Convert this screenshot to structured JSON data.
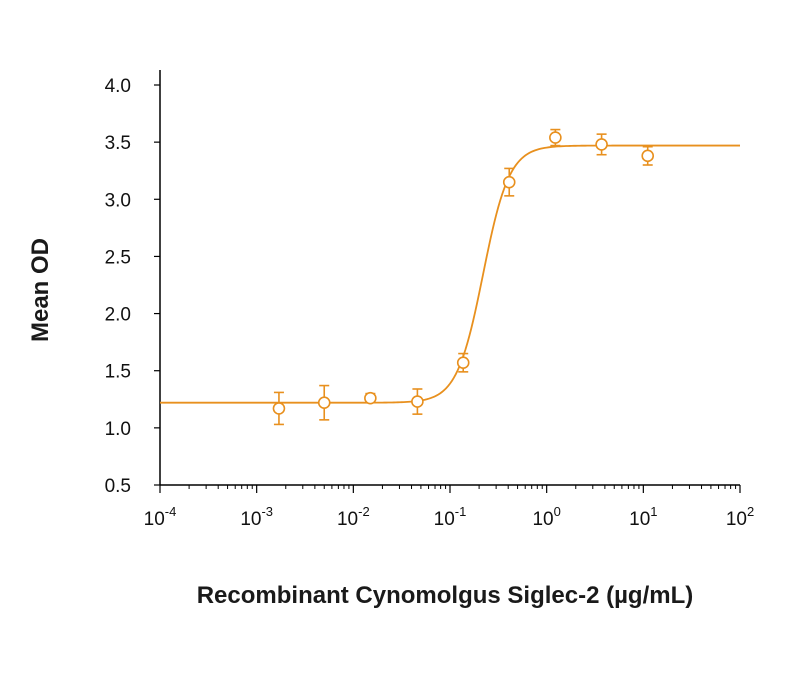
{
  "chart_data": {
    "type": "scatter",
    "title": "",
    "xlabel": "Recombinant Cynomolgus Siglec-2 (µg/mL)",
    "ylabel": "Mean OD",
    "x_scale": "log",
    "xlim": [
      0.0001,
      100
    ],
    "ylim": [
      0.5,
      4.0
    ],
    "x_ticks": [
      {
        "base": "10",
        "exp": "-4"
      },
      {
        "base": "10",
        "exp": "-3"
      },
      {
        "base": "10",
        "exp": "-2"
      },
      {
        "base": "10",
        "exp": "-1"
      },
      {
        "base": "10",
        "exp": "0"
      },
      {
        "base": "10",
        "exp": "1"
      },
      {
        "base": "10",
        "exp": "2"
      }
    ],
    "y_ticks": [
      "0.5",
      "1.0",
      "1.5",
      "2.0",
      "2.5",
      "3.0",
      "3.5",
      "4.0"
    ],
    "color": "#E8901E",
    "grid": false,
    "legend": "none",
    "series": [
      {
        "marker": "open-circle",
        "x": [
          0.0017,
          0.005,
          0.015,
          0.046,
          0.137,
          0.41,
          1.23,
          3.7,
          11.1
        ],
        "y": [
          1.17,
          1.22,
          1.26,
          1.23,
          1.57,
          3.15,
          3.54,
          3.48,
          3.38
        ],
        "err": [
          0.14,
          0.15,
          0.04,
          0.11,
          0.08,
          0.12,
          0.07,
          0.09,
          0.08
        ]
      }
    ],
    "fit_curve": {
      "type": "4PL",
      "bottom": 1.22,
      "top": 3.47,
      "ec50": 0.22,
      "hill": 3.2
    }
  }
}
